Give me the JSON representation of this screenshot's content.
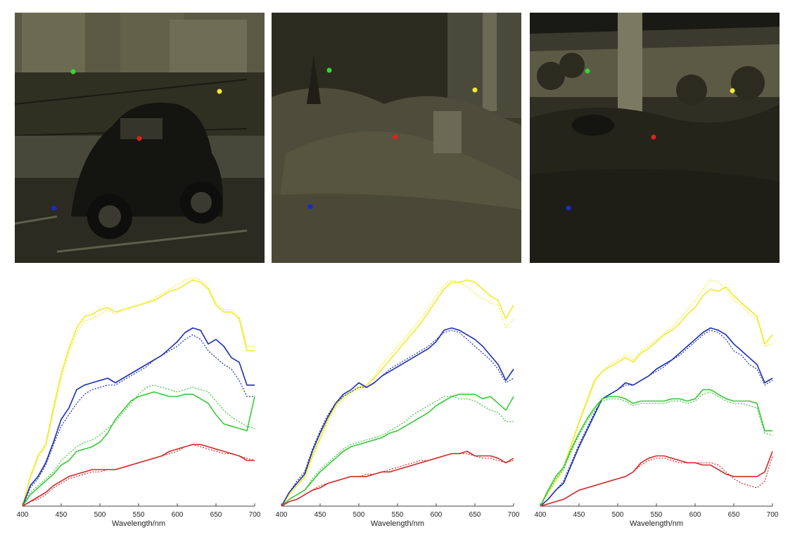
{
  "colors": {
    "red": "#d42a2a",
    "green": "#3ac93a",
    "blue": "#1c2fb4",
    "yellow": "#f2ea2a"
  },
  "scenes": [
    {
      "description_name": "street-car-scene"
    },
    {
      "description_name": "rubble-scene"
    },
    {
      "description_name": "overpass-scene"
    }
  ],
  "chart_data": [
    {
      "type": "line",
      "title": "",
      "xlabel": "Wavelength/nm",
      "ylabel": "",
      "xlim": [
        400,
        700
      ],
      "ylim": [
        0,
        1
      ],
      "xticks": [
        400,
        450,
        500,
        550,
        600,
        650,
        700
      ],
      "x": [
        400,
        410,
        420,
        430,
        440,
        450,
        460,
        470,
        480,
        490,
        500,
        510,
        520,
        530,
        540,
        550,
        560,
        570,
        580,
        590,
        600,
        610,
        620,
        630,
        640,
        650,
        660,
        670,
        680,
        690,
        700
      ],
      "series": [
        {
          "color": "yellow",
          "style": "solid",
          "values": [
            0.0,
            0.13,
            0.22,
            0.27,
            0.43,
            0.58,
            0.69,
            0.78,
            0.83,
            0.84,
            0.86,
            0.87,
            0.85,
            0.86,
            0.87,
            0.88,
            0.89,
            0.9,
            0.92,
            0.94,
            0.95,
            0.97,
            0.99,
            0.98,
            0.95,
            0.88,
            0.85,
            0.85,
            0.82,
            0.68,
            0.68
          ]
        },
        {
          "color": "yellow",
          "style": "dotted",
          "values": [
            0.0,
            0.12,
            0.21,
            0.26,
            0.41,
            0.56,
            0.67,
            0.76,
            0.81,
            0.82,
            0.84,
            0.86,
            0.84,
            0.86,
            0.87,
            0.88,
            0.89,
            0.91,
            0.93,
            0.95,
            0.97,
            0.99,
            1.0,
            0.99,
            0.96,
            0.89,
            0.86,
            0.86,
            0.83,
            0.7,
            0.7
          ]
        },
        {
          "color": "blue",
          "style": "solid",
          "values": [
            0.0,
            0.09,
            0.13,
            0.19,
            0.28,
            0.38,
            0.43,
            0.51,
            0.53,
            0.54,
            0.55,
            0.56,
            0.54,
            0.56,
            0.58,
            0.6,
            0.62,
            0.64,
            0.66,
            0.69,
            0.72,
            0.76,
            0.78,
            0.77,
            0.71,
            0.73,
            0.7,
            0.65,
            0.63,
            0.53,
            0.53
          ]
        },
        {
          "color": "blue",
          "style": "dotted",
          "values": [
            0.0,
            0.08,
            0.12,
            0.18,
            0.27,
            0.35,
            0.4,
            0.45,
            0.49,
            0.51,
            0.52,
            0.53,
            0.53,
            0.55,
            0.57,
            0.59,
            0.61,
            0.64,
            0.66,
            0.68,
            0.7,
            0.73,
            0.75,
            0.73,
            0.68,
            0.65,
            0.62,
            0.6,
            0.55,
            0.48,
            0.48
          ]
        },
        {
          "color": "green",
          "style": "solid",
          "values": [
            0.0,
            0.05,
            0.08,
            0.11,
            0.14,
            0.18,
            0.2,
            0.24,
            0.25,
            0.26,
            0.28,
            0.32,
            0.38,
            0.42,
            0.46,
            0.48,
            0.49,
            0.5,
            0.49,
            0.48,
            0.48,
            0.49,
            0.49,
            0.47,
            0.45,
            0.4,
            0.36,
            0.35,
            0.34,
            0.33,
            0.48
          ]
        },
        {
          "color": "green",
          "style": "dotted",
          "values": [
            0.0,
            0.06,
            0.09,
            0.12,
            0.15,
            0.2,
            0.23,
            0.26,
            0.28,
            0.29,
            0.31,
            0.34,
            0.37,
            0.41,
            0.45,
            0.49,
            0.52,
            0.53,
            0.52,
            0.51,
            0.5,
            0.51,
            0.52,
            0.51,
            0.5,
            0.46,
            0.42,
            0.39,
            0.37,
            0.35,
            0.34
          ]
        },
        {
          "color": "red",
          "style": "solid",
          "values": [
            0.0,
            0.02,
            0.04,
            0.06,
            0.09,
            0.11,
            0.13,
            0.14,
            0.15,
            0.16,
            0.16,
            0.16,
            0.16,
            0.17,
            0.18,
            0.19,
            0.2,
            0.21,
            0.22,
            0.24,
            0.25,
            0.26,
            0.27,
            0.27,
            0.26,
            0.25,
            0.24,
            0.23,
            0.22,
            0.2,
            0.2
          ]
        },
        {
          "color": "red",
          "style": "dotted",
          "values": [
            0.0,
            0.02,
            0.03,
            0.05,
            0.08,
            0.1,
            0.12,
            0.13,
            0.14,
            0.15,
            0.15,
            0.16,
            0.16,
            0.17,
            0.18,
            0.19,
            0.2,
            0.21,
            0.22,
            0.23,
            0.24,
            0.26,
            0.27,
            0.26,
            0.25,
            0.24,
            0.23,
            0.23,
            0.22,
            0.21,
            0.2
          ]
        }
      ]
    },
    {
      "type": "line",
      "title": "",
      "xlabel": "Wavelength/nm",
      "ylabel": "",
      "xlim": [
        400,
        700
      ],
      "ylim": [
        0,
        1
      ],
      "xticks": [
        400,
        450,
        500,
        550,
        600,
        650,
        700
      ],
      "x": [
        400,
        410,
        420,
        430,
        440,
        450,
        460,
        470,
        480,
        490,
        500,
        510,
        520,
        530,
        540,
        550,
        560,
        570,
        580,
        590,
        600,
        610,
        620,
        630,
        640,
        650,
        660,
        670,
        680,
        690,
        700
      ],
      "series": [
        {
          "color": "yellow",
          "style": "solid",
          "values": [
            0.0,
            0.05,
            0.09,
            0.13,
            0.22,
            0.3,
            0.38,
            0.44,
            0.48,
            0.5,
            0.52,
            0.53,
            0.56,
            0.6,
            0.64,
            0.68,
            0.72,
            0.76,
            0.8,
            0.85,
            0.9,
            0.95,
            0.98,
            0.98,
            0.99,
            0.98,
            0.95,
            0.92,
            0.9,
            0.82,
            0.88
          ]
        },
        {
          "color": "yellow",
          "style": "dotted",
          "values": [
            0.0,
            0.05,
            0.09,
            0.12,
            0.21,
            0.29,
            0.37,
            0.43,
            0.47,
            0.49,
            0.51,
            0.52,
            0.57,
            0.62,
            0.66,
            0.7,
            0.74,
            0.78,
            0.82,
            0.87,
            0.92,
            0.97,
            0.99,
            0.98,
            0.96,
            0.93,
            0.91,
            0.89,
            0.88,
            0.78,
            0.82
          ]
        },
        {
          "color": "blue",
          "style": "solid",
          "values": [
            0.0,
            0.06,
            0.1,
            0.14,
            0.24,
            0.32,
            0.39,
            0.45,
            0.49,
            0.51,
            0.54,
            0.52,
            0.54,
            0.57,
            0.59,
            0.61,
            0.63,
            0.65,
            0.67,
            0.69,
            0.72,
            0.77,
            0.78,
            0.77,
            0.75,
            0.73,
            0.7,
            0.66,
            0.62,
            0.55,
            0.6
          ]
        },
        {
          "color": "blue",
          "style": "dotted",
          "values": [
            0.0,
            0.06,
            0.11,
            0.15,
            0.25,
            0.33,
            0.4,
            0.45,
            0.48,
            0.5,
            0.52,
            0.52,
            0.54,
            0.57,
            0.6,
            0.62,
            0.64,
            0.66,
            0.68,
            0.7,
            0.73,
            0.76,
            0.77,
            0.76,
            0.73,
            0.7,
            0.67,
            0.64,
            0.6,
            0.54,
            0.56
          ]
        },
        {
          "color": "green",
          "style": "solid",
          "values": [
            0.0,
            0.03,
            0.05,
            0.07,
            0.11,
            0.15,
            0.18,
            0.21,
            0.24,
            0.26,
            0.27,
            0.28,
            0.29,
            0.3,
            0.32,
            0.33,
            0.35,
            0.37,
            0.39,
            0.41,
            0.44,
            0.46,
            0.48,
            0.49,
            0.49,
            0.49,
            0.47,
            0.48,
            0.45,
            0.42,
            0.48
          ]
        },
        {
          "color": "green",
          "style": "dotted",
          "values": [
            0.0,
            0.03,
            0.05,
            0.07,
            0.12,
            0.16,
            0.19,
            0.22,
            0.25,
            0.27,
            0.28,
            0.29,
            0.3,
            0.31,
            0.33,
            0.35,
            0.37,
            0.4,
            0.42,
            0.44,
            0.46,
            0.48,
            0.48,
            0.47,
            0.47,
            0.46,
            0.44,
            0.42,
            0.41,
            0.37,
            0.37
          ]
        },
        {
          "color": "red",
          "style": "solid",
          "values": [
            0.0,
            0.02,
            0.03,
            0.05,
            0.07,
            0.08,
            0.1,
            0.11,
            0.12,
            0.13,
            0.13,
            0.13,
            0.14,
            0.15,
            0.15,
            0.16,
            0.17,
            0.18,
            0.19,
            0.2,
            0.21,
            0.22,
            0.23,
            0.23,
            0.24,
            0.22,
            0.22,
            0.22,
            0.21,
            0.19,
            0.21
          ]
        },
        {
          "color": "red",
          "style": "dotted",
          "values": [
            0.0,
            0.02,
            0.03,
            0.05,
            0.07,
            0.09,
            0.1,
            0.11,
            0.12,
            0.13,
            0.13,
            0.14,
            0.14,
            0.15,
            0.16,
            0.17,
            0.18,
            0.19,
            0.2,
            0.2,
            0.21,
            0.22,
            0.23,
            0.23,
            0.23,
            0.22,
            0.21,
            0.21,
            0.2,
            0.19,
            0.2
          ]
        }
      ]
    },
    {
      "type": "line",
      "title": "",
      "xlabel": "Wavelength/nm",
      "ylabel": "",
      "xlim": [
        400,
        700
      ],
      "ylim": [
        0,
        1
      ],
      "xticks": [
        400,
        450,
        500,
        550,
        600,
        650,
        700
      ],
      "x": [
        400,
        410,
        420,
        430,
        440,
        450,
        460,
        470,
        480,
        490,
        500,
        510,
        520,
        530,
        540,
        550,
        560,
        570,
        580,
        590,
        600,
        610,
        620,
        630,
        640,
        650,
        660,
        670,
        680,
        690,
        700
      ],
      "series": [
        {
          "color": "yellow",
          "style": "solid",
          "values": [
            0.0,
            0.06,
            0.11,
            0.17,
            0.27,
            0.37,
            0.46,
            0.55,
            0.59,
            0.61,
            0.63,
            0.65,
            0.63,
            0.67,
            0.69,
            0.72,
            0.75,
            0.77,
            0.8,
            0.84,
            0.87,
            0.92,
            0.95,
            0.94,
            0.96,
            0.92,
            0.89,
            0.86,
            0.83,
            0.71,
            0.75
          ]
        },
        {
          "color": "yellow",
          "style": "dotted",
          "values": [
            0.0,
            0.06,
            0.11,
            0.16,
            0.26,
            0.36,
            0.45,
            0.54,
            0.59,
            0.62,
            0.64,
            0.66,
            0.64,
            0.68,
            0.7,
            0.73,
            0.76,
            0.78,
            0.82,
            0.86,
            0.9,
            0.95,
            0.99,
            0.98,
            0.95,
            0.9,
            0.88,
            0.84,
            0.82,
            0.7,
            0.71
          ]
        },
        {
          "color": "blue",
          "style": "solid",
          "values": [
            0.0,
            0.03,
            0.07,
            0.1,
            0.18,
            0.26,
            0.33,
            0.4,
            0.47,
            0.49,
            0.51,
            0.54,
            0.53,
            0.55,
            0.57,
            0.6,
            0.62,
            0.64,
            0.67,
            0.7,
            0.73,
            0.76,
            0.78,
            0.77,
            0.75,
            0.71,
            0.68,
            0.65,
            0.62,
            0.54,
            0.56
          ]
        },
        {
          "color": "blue",
          "style": "dotted",
          "values": [
            0.0,
            0.03,
            0.07,
            0.11,
            0.19,
            0.27,
            0.34,
            0.41,
            0.47,
            0.49,
            0.51,
            0.53,
            0.53,
            0.55,
            0.57,
            0.59,
            0.61,
            0.64,
            0.66,
            0.69,
            0.72,
            0.75,
            0.77,
            0.76,
            0.73,
            0.68,
            0.66,
            0.62,
            0.6,
            0.53,
            0.55
          ]
        },
        {
          "color": "green",
          "style": "solid",
          "values": [
            0.0,
            0.07,
            0.13,
            0.17,
            0.25,
            0.32,
            0.38,
            0.43,
            0.47,
            0.48,
            0.48,
            0.47,
            0.45,
            0.46,
            0.46,
            0.46,
            0.46,
            0.47,
            0.47,
            0.46,
            0.47,
            0.51,
            0.51,
            0.49,
            0.47,
            0.46,
            0.46,
            0.46,
            0.45,
            0.33,
            0.33
          ]
        },
        {
          "color": "green",
          "style": "dotted",
          "values": [
            0.0,
            0.06,
            0.12,
            0.16,
            0.24,
            0.31,
            0.37,
            0.42,
            0.46,
            0.47,
            0.47,
            0.46,
            0.44,
            0.45,
            0.45,
            0.45,
            0.45,
            0.46,
            0.46,
            0.45,
            0.46,
            0.49,
            0.5,
            0.48,
            0.46,
            0.45,
            0.45,
            0.44,
            0.43,
            0.32,
            0.31
          ]
        },
        {
          "color": "red",
          "style": "solid",
          "values": [
            0.0,
            0.01,
            0.02,
            0.03,
            0.05,
            0.07,
            0.08,
            0.09,
            0.1,
            0.11,
            0.12,
            0.13,
            0.15,
            0.19,
            0.21,
            0.22,
            0.22,
            0.21,
            0.2,
            0.19,
            0.19,
            0.18,
            0.18,
            0.16,
            0.14,
            0.13,
            0.13,
            0.13,
            0.13,
            0.15,
            0.24
          ]
        },
        {
          "color": "red",
          "style": "dotted",
          "values": [
            0.0,
            0.01,
            0.02,
            0.03,
            0.05,
            0.07,
            0.08,
            0.09,
            0.1,
            0.11,
            0.12,
            0.13,
            0.15,
            0.18,
            0.2,
            0.21,
            0.21,
            0.2,
            0.19,
            0.19,
            0.19,
            0.19,
            0.19,
            0.18,
            0.15,
            0.12,
            0.1,
            0.09,
            0.08,
            0.11,
            0.22
          ]
        }
      ]
    }
  ]
}
